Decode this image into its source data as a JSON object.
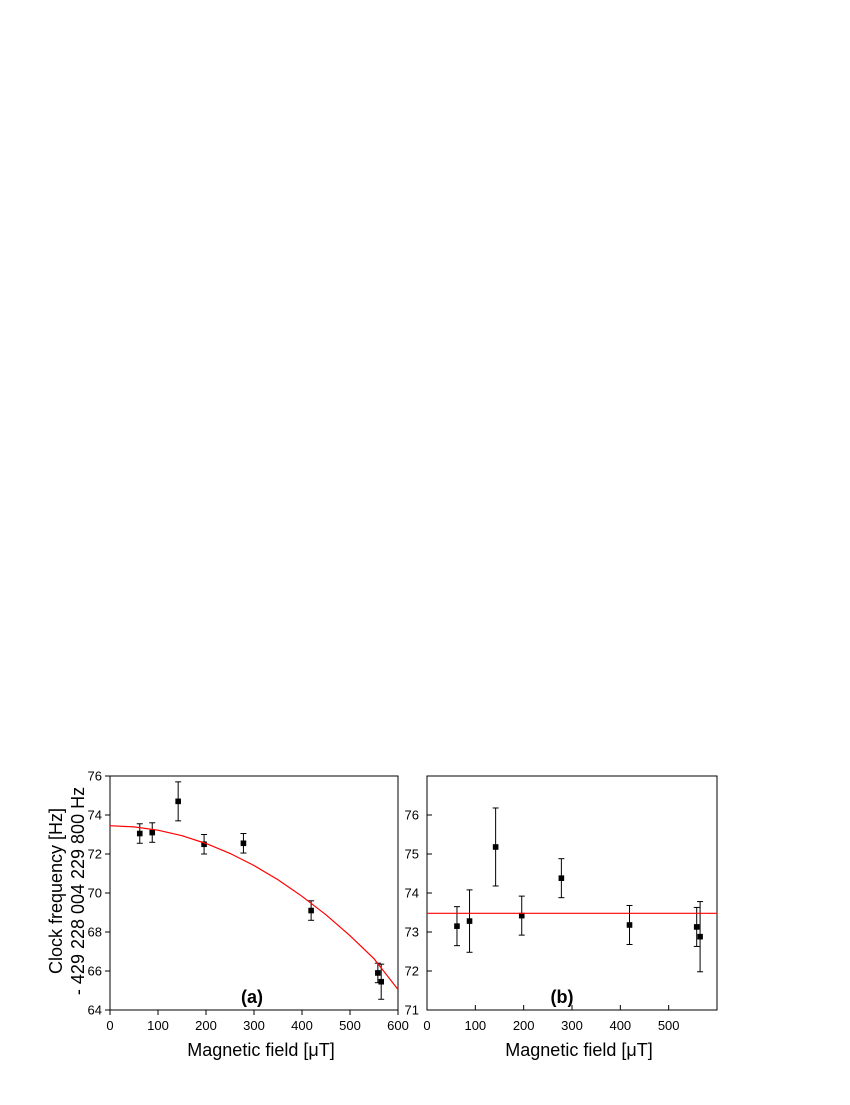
{
  "chart_data": [
    {
      "type": "scatter",
      "panel_label": "(a)",
      "xlabel": "Magnetic field [μT]",
      "ylabel_line1": "Clock frequency [Hz]",
      "ylabel_line2": "- 429 228 004 229 800 Hz",
      "xlim": [
        0,
        600
      ],
      "ylim": [
        64,
        76
      ],
      "xticks": [
        0,
        100,
        200,
        300,
        400,
        500,
        600
      ],
      "yticks": [
        64,
        66,
        68,
        70,
        72,
        74,
        76
      ],
      "grid": false,
      "series": [
        {
          "kind": "points-with-errorbars",
          "color": "#000000",
          "points": [
            {
              "x": 62,
              "y": 73.05,
              "err": 0.5
            },
            {
              "x": 88,
              "y": 73.1,
              "err": 0.5
            },
            {
              "x": 142,
              "y": 74.7,
              "err": 1.0
            },
            {
              "x": 196,
              "y": 72.5,
              "err": 0.5
            },
            {
              "x": 278,
              "y": 72.55,
              "err": 0.5
            },
            {
              "x": 419,
              "y": 69.1,
              "err": 0.5
            },
            {
              "x": 558,
              "y": 65.9,
              "err": 0.5
            },
            {
              "x": 565,
              "y": 65.45,
              "err": 0.9
            }
          ]
        },
        {
          "kind": "fit-curve",
          "color": "#ff0000",
          "x": [
            0,
            50,
            100,
            150,
            200,
            250,
            300,
            350,
            400,
            450,
            500,
            550,
            600
          ],
          "y": [
            73.45,
            73.39,
            73.22,
            72.94,
            72.54,
            72.03,
            71.41,
            70.68,
            69.83,
            68.88,
            67.81,
            66.63,
            65.05
          ]
        }
      ]
    },
    {
      "type": "scatter",
      "panel_label": "(b)",
      "xlabel": "Magnetic field [μT]",
      "xlim": [
        0,
        600
      ],
      "ylim": [
        71,
        77
      ],
      "xticks": [
        0,
        100,
        200,
        300,
        400,
        500
      ],
      "yticks": [
        71,
        72,
        73,
        74,
        75,
        76
      ],
      "grid": false,
      "series": [
        {
          "kind": "points-with-errorbars",
          "color": "#000000",
          "points": [
            {
              "x": 62,
              "y": 73.15,
              "err": 0.5
            },
            {
              "x": 88,
              "y": 73.28,
              "err": 0.8
            },
            {
              "x": 142,
              "y": 75.18,
              "err": 1.0
            },
            {
              "x": 196,
              "y": 73.42,
              "err": 0.5
            },
            {
              "x": 278,
              "y": 74.38,
              "err": 0.5
            },
            {
              "x": 419,
              "y": 73.18,
              "err": 0.5
            },
            {
              "x": 558,
              "y": 73.13,
              "err": 0.5
            },
            {
              "x": 565,
              "y": 72.88,
              "err": 0.9
            }
          ]
        },
        {
          "kind": "fit-line",
          "color": "#ff0000",
          "x": [
            0,
            600
          ],
          "y": [
            73.48,
            73.48
          ]
        }
      ]
    }
  ]
}
